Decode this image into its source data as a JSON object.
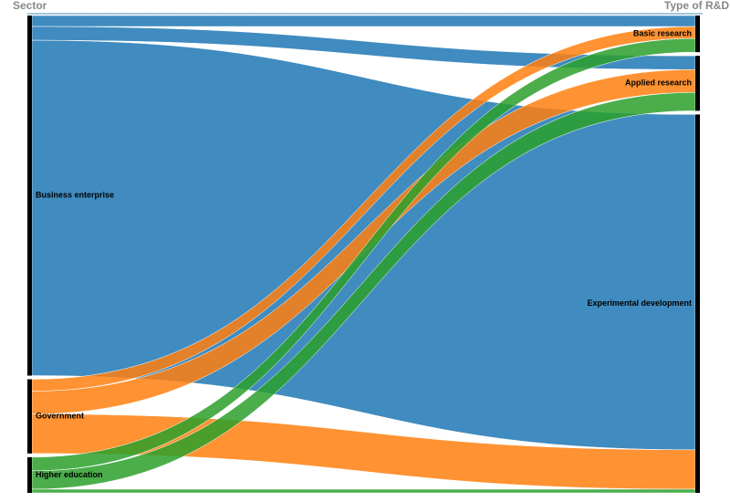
{
  "chart_data": {
    "type": "sankey",
    "source_title": "Sector",
    "target_title": "Type of R&D",
    "sources": [
      {
        "name": "Business enterprise",
        "color": "#1f77b4"
      },
      {
        "name": "Government",
        "color": "#ff7f0e"
      },
      {
        "name": "Higher education",
        "color": "#2ca02c"
      }
    ],
    "targets": [
      "Basic research",
      "Applied research",
      "Experimental development"
    ],
    "links": [
      {
        "source": 0,
        "target": 0,
        "value": 12
      },
      {
        "source": 0,
        "target": 1,
        "value": 15
      },
      {
        "source": 0,
        "target": 2,
        "value": 366
      },
      {
        "source": 1,
        "target": 0,
        "value": 13
      },
      {
        "source": 1,
        "target": 1,
        "value": 25
      },
      {
        "source": 1,
        "target": 2,
        "value": 43
      },
      {
        "source": 2,
        "target": 0,
        "value": 15
      },
      {
        "source": 2,
        "target": 1,
        "value": 20
      },
      {
        "source": 2,
        "target": 2,
        "value": 4
      }
    ]
  }
}
